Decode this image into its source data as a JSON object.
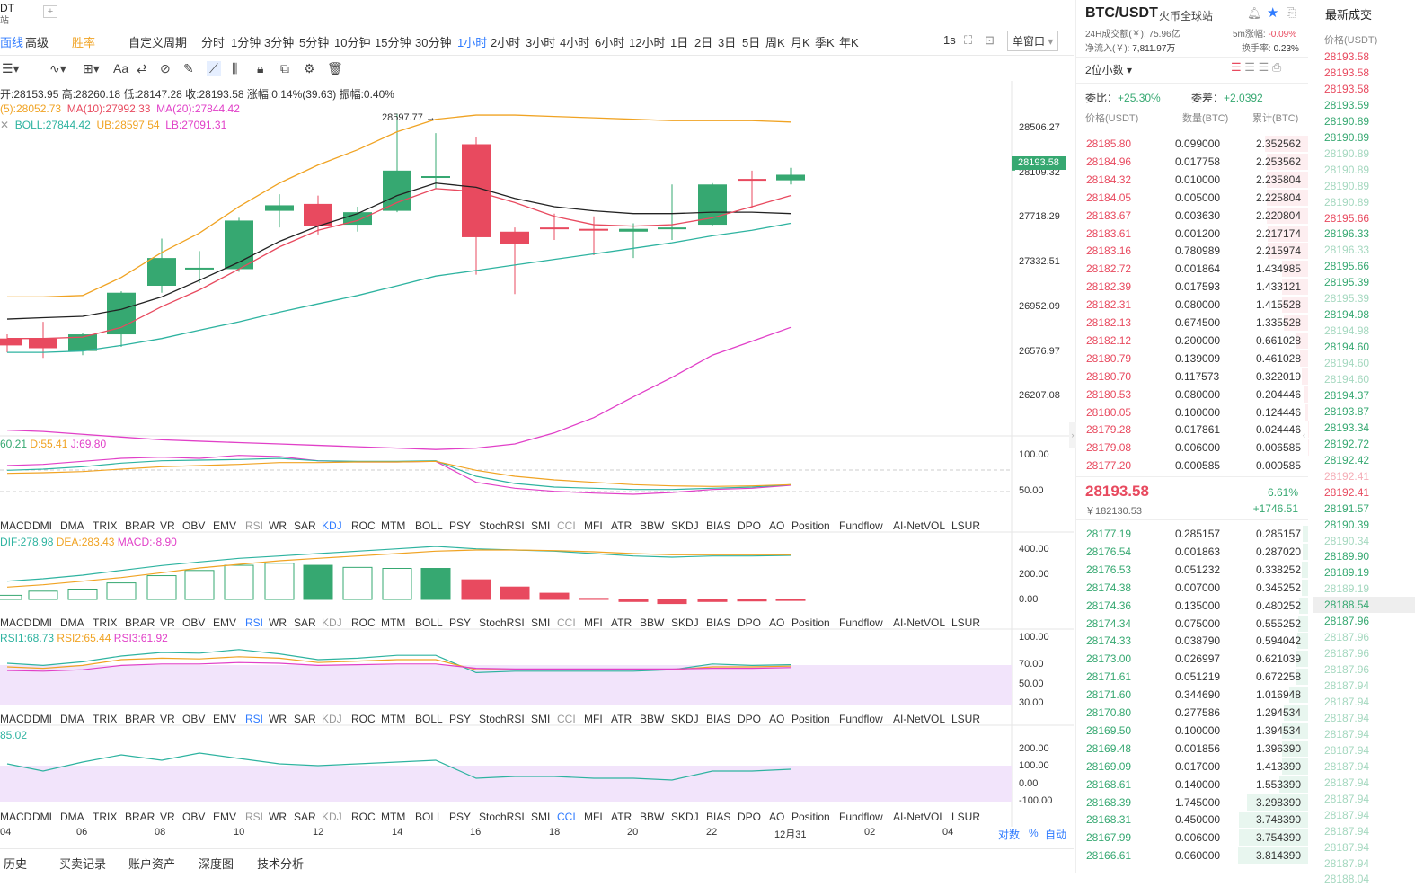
{
  "app": {
    "pair_tab": "DT",
    "pair_tab_sub": "站",
    "plus": "+"
  },
  "toolbar": {
    "items": [
      "面线",
      "高级",
      "胜率",
      "自定义周期",
      "分时",
      "1分钟",
      "3分钟",
      "5分钟",
      "10分钟",
      "15分钟",
      "30分钟",
      "1小时",
      "2小时",
      "3小时",
      "4小时",
      "6小时",
      "12小时",
      "1日",
      "2日",
      "3日",
      "5日",
      "周K",
      "月K",
      "季K",
      "年K"
    ],
    "active": "1小时",
    "right_items": [
      "1s",
      "单窗口"
    ]
  },
  "indicators": {
    "ohlc": "开:28153.95  高:28260.18  低:28147.28  收:28193.58  涨幅:0.14%(39.63)  振幅:0.40%",
    "ma5": "(5):28052.73",
    "ma10": "MA(10):27992.33",
    "ma20": "MA(20):27844.42",
    "boll": "BOLL:27844.42",
    "ub": "UB:28597.54",
    "lb": "LB:27091.31",
    "high_marker": "28597.77"
  },
  "price_axis": [
    "28506.27",
    "28109.32",
    "27718.29",
    "27332.51",
    "26952.09",
    "26576.97",
    "26207.08"
  ],
  "current_price_tag": "28193.58",
  "kdj": {
    "k": "60.21",
    "d": "D:55.41",
    "j": "J:69.80",
    "ticks": [
      "100.00",
      "50.00"
    ]
  },
  "macd": {
    "dif": "DIF:278.98",
    "dea": "DEA:283.43",
    "macd": "MACD:-8.90",
    "ticks": [
      "400.00",
      "200.00",
      "0.00"
    ]
  },
  "rsi": {
    "rsi1": "RSI1:68.73",
    "rsi2": "RSI2:65.44",
    "rsi3": "RSI3:61.92",
    "ticks": [
      "100.00",
      "70.00",
      "50.00",
      "30.00"
    ]
  },
  "cci": {
    "value": "85.02",
    "ticks": [
      "200.00",
      "100.00",
      "0.00",
      "-100.00"
    ]
  },
  "indicator_tabs": [
    "MACD",
    "DMI",
    "DMA",
    "TRIX",
    "BRAR",
    "VR",
    "OBV",
    "EMV",
    "RSI",
    "WR",
    "SAR",
    "KDJ",
    "ROC",
    "MTM",
    "BOLL",
    "PSY",
    "StochRSI",
    "SMI",
    "CCI",
    "MFI",
    "ATR",
    "BBW",
    "SKDJ",
    "BIAS",
    "DPO",
    "AO",
    "Position",
    "Fundflow",
    "AI-NetVOL",
    "LSUR"
  ],
  "tab_highlights": [
    "KDJ",
    "RSI",
    "RSI",
    "CCI"
  ],
  "x_axis": [
    "04",
    "06",
    "08",
    "10",
    "12",
    "14",
    "16",
    "18",
    "20",
    "22",
    "12月31",
    "02",
    "04"
  ],
  "x_axis_right": [
    "对数",
    "%",
    "自动"
  ],
  "bottom_tabs": [
    "历史",
    "买卖记录",
    "账户资产",
    "深度图",
    "技术分析"
  ],
  "orderbook": {
    "title": "BTC/USDT",
    "exchange": "火币全球站",
    "vol24": "24H成交额(￥): 75.96亿",
    "change5m_label": "5m涨幅:",
    "change5m": "-0.09%",
    "netflow_label": "净流入(￥):",
    "netflow": "7,811.97万",
    "turnover_label": "换手率:",
    "turnover": "0.23%",
    "decimals": "2位小数",
    "ratio_label": "委比：",
    "ratio": "+25.30%",
    "diff_label": "委差：",
    "diff": "+2.0392",
    "headers": [
      "价格(USDT)",
      "数量(BTC)",
      "累计(BTC)"
    ],
    "asks": [
      [
        "28185.80",
        "0.099000",
        "2.352562"
      ],
      [
        "28184.96",
        "0.017758",
        "2.253562"
      ],
      [
        "28184.32",
        "0.010000",
        "2.235804"
      ],
      [
        "28184.05",
        "0.005000",
        "2.225804"
      ],
      [
        "28183.67",
        "0.003630",
        "2.220804"
      ],
      [
        "28183.61",
        "0.001200",
        "2.217174"
      ],
      [
        "28183.16",
        "0.780989",
        "2.215974"
      ],
      [
        "28182.72",
        "0.001864",
        "1.434985"
      ],
      [
        "28182.39",
        "0.017593",
        "1.433121"
      ],
      [
        "28182.31",
        "0.080000",
        "1.415528"
      ],
      [
        "28182.13",
        "0.674500",
        "1.335528"
      ],
      [
        "28182.12",
        "0.200000",
        "0.661028"
      ],
      [
        "28180.79",
        "0.139009",
        "0.461028"
      ],
      [
        "28180.70",
        "0.117573",
        "0.322019"
      ],
      [
        "28180.53",
        "0.080000",
        "0.204446"
      ],
      [
        "28180.05",
        "0.100000",
        "0.124446"
      ],
      [
        "28179.28",
        "0.017861",
        "0.024446"
      ],
      [
        "28179.08",
        "0.006000",
        "0.006585"
      ],
      [
        "28177.20",
        "0.000585",
        "0.000585"
      ]
    ],
    "last_price": "28193.58",
    "last_cny": "￥182130.53",
    "last_change_pct": "6.61%",
    "last_change_abs": "+1746.51",
    "bids": [
      [
        "28177.19",
        "0.285157",
        "0.285157"
      ],
      [
        "28176.54",
        "0.001863",
        "0.287020"
      ],
      [
        "28176.53",
        "0.051232",
        "0.338252"
      ],
      [
        "28174.38",
        "0.007000",
        "0.345252"
      ],
      [
        "28174.36",
        "0.135000",
        "0.480252"
      ],
      [
        "28174.34",
        "0.075000",
        "0.555252"
      ],
      [
        "28174.33",
        "0.038790",
        "0.594042"
      ],
      [
        "28173.00",
        "0.026997",
        "0.621039"
      ],
      [
        "28171.61",
        "0.051219",
        "0.672258"
      ],
      [
        "28171.60",
        "0.344690",
        "1.016948"
      ],
      [
        "28170.80",
        "0.277586",
        "1.294534"
      ],
      [
        "28169.50",
        "0.100000",
        "1.394534"
      ],
      [
        "28169.48",
        "0.001856",
        "1.396390"
      ],
      [
        "28169.09",
        "0.017000",
        "1.413390"
      ],
      [
        "28168.61",
        "0.140000",
        "1.553390"
      ],
      [
        "28168.39",
        "1.745000",
        "3.298390"
      ],
      [
        "28168.31",
        "0.450000",
        "3.748390"
      ],
      [
        "28167.99",
        "0.006000",
        "3.754390"
      ],
      [
        "28166.61",
        "0.060000",
        "3.814390"
      ]
    ]
  },
  "trades": {
    "title": "最新成交",
    "header": "价格(USDT)",
    "rows": [
      [
        "28193.58",
        "red"
      ],
      [
        "28193.58",
        "red"
      ],
      [
        "28193.58",
        "red"
      ],
      [
        "28193.59",
        "green"
      ],
      [
        "28190.89",
        "green"
      ],
      [
        "28190.89",
        "green"
      ],
      [
        "28190.89",
        "green"
      ],
      [
        "28190.89",
        "green"
      ],
      [
        "28190.89",
        "green"
      ],
      [
        "28190.89",
        "green"
      ],
      [
        "28195.66",
        "red"
      ],
      [
        "28196.33",
        "green"
      ],
      [
        "28196.33",
        "green"
      ],
      [
        "28195.66",
        "green"
      ],
      [
        "28195.39",
        "green"
      ],
      [
        "28195.39",
        "green"
      ],
      [
        "28194.98",
        "green"
      ],
      [
        "28194.98",
        "green"
      ],
      [
        "28194.60",
        "green"
      ],
      [
        "28194.60",
        "green"
      ],
      [
        "28194.60",
        "green"
      ],
      [
        "28194.37",
        "green"
      ],
      [
        "28193.87",
        "green"
      ],
      [
        "28193.34",
        "green"
      ],
      [
        "28192.72",
        "green"
      ],
      [
        "28192.42",
        "green"
      ],
      [
        "28192.41",
        "red"
      ],
      [
        "28192.41",
        "red"
      ],
      [
        "28191.57",
        "green"
      ],
      [
        "28190.39",
        "green"
      ],
      [
        "28190.34",
        "green"
      ],
      [
        "28189.90",
        "green"
      ],
      [
        "28189.19",
        "green"
      ],
      [
        "28189.19",
        "green"
      ],
      [
        "28188.54",
        "green"
      ],
      [
        "28187.96",
        "green"
      ],
      [
        "28187.96",
        "green"
      ],
      [
        "28187.96",
        "green"
      ],
      [
        "28187.96",
        "green"
      ],
      [
        "28187.94",
        "green"
      ],
      [
        "28187.94",
        "green"
      ],
      [
        "28187.94",
        "green"
      ],
      [
        "28187.94",
        "green"
      ],
      [
        "28187.94",
        "green"
      ],
      [
        "28187.94",
        "green"
      ],
      [
        "28187.94",
        "green"
      ],
      [
        "28187.94",
        "green"
      ],
      [
        "28187.94",
        "green"
      ],
      [
        "28187.94",
        "green"
      ],
      [
        "28187.94",
        "green"
      ],
      [
        "28187.94",
        "green"
      ],
      [
        "28188.04",
        "green"
      ]
    ]
  },
  "colors": {
    "up": "#36a871",
    "down": "#e84a5f",
    "accent": "#2f7bff"
  }
}
